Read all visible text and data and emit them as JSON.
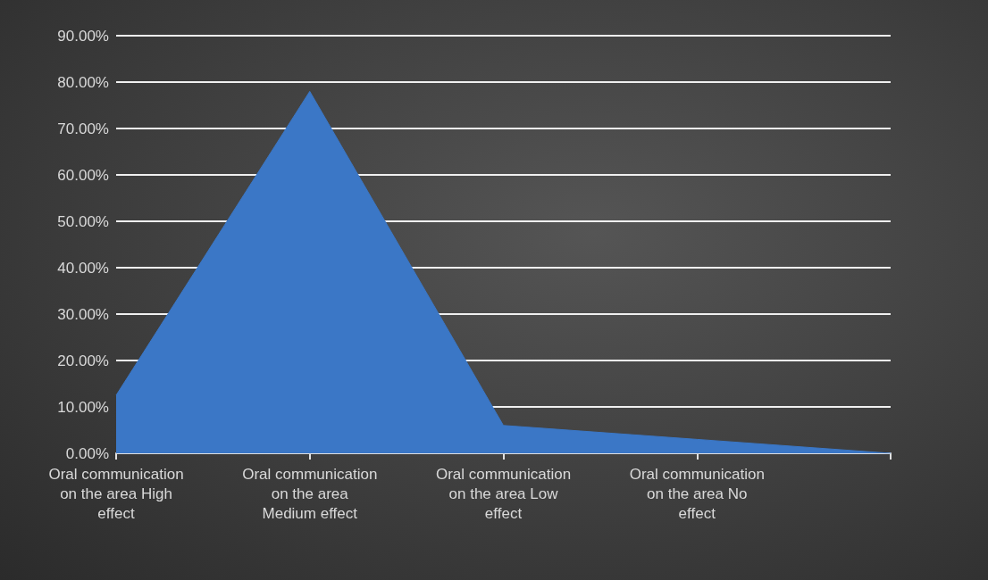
{
  "chart_data": {
    "type": "area",
    "categories": [
      "Oral communication on the area High effect",
      "Oral communication on the area Medium effect",
      "Oral communication on the area Low effect",
      "Oral communication on the area No effect",
      null
    ],
    "series": [
      {
        "color": "#3b77c6",
        "values": [
          12.5,
          78,
          6,
          3,
          0
        ]
      }
    ],
    "ylim": [
      0,
      90
    ],
    "yticks": [
      {
        "value": 0,
        "label": "0.00%"
      },
      {
        "value": 10,
        "label": "10.00%"
      },
      {
        "value": 20,
        "label": "20.00%"
      },
      {
        "value": 30,
        "label": "30.00%"
      },
      {
        "value": 40,
        "label": "40.00%"
      },
      {
        "value": 50,
        "label": "50.00%"
      },
      {
        "value": 60,
        "label": "60.00%"
      },
      {
        "value": 70,
        "label": "70.00%"
      },
      {
        "value": 80,
        "label": "80.00%"
      },
      {
        "value": 90,
        "label": "90.00%"
      }
    ],
    "grid": "y"
  }
}
